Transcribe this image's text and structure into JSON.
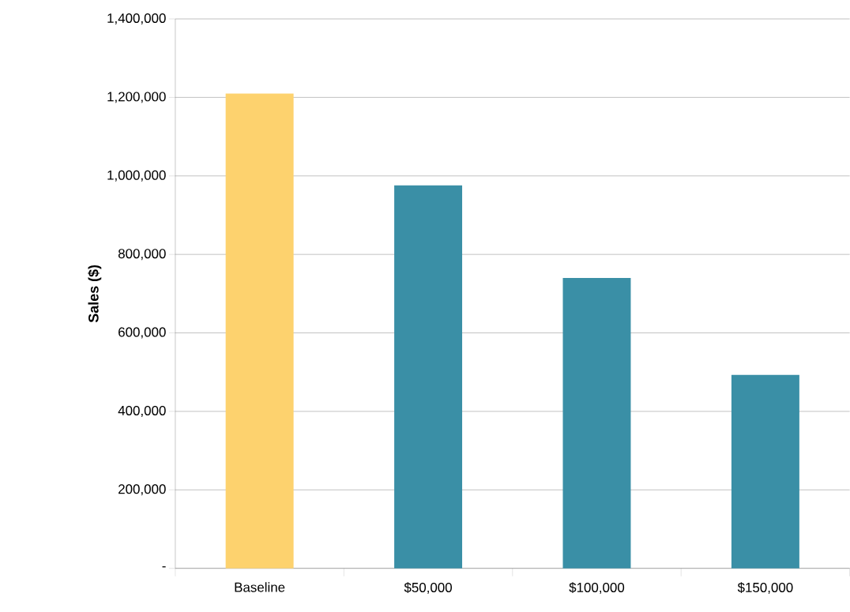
{
  "chart_data": {
    "type": "bar",
    "ylabel": "Sales ($)",
    "categories": [
      "Baseline",
      "$50,000",
      "$100,000",
      "$150,000"
    ],
    "values": [
      1210000,
      976000,
      740000,
      493000
    ],
    "colors": [
      "#fdd26e",
      "#3a8fa6",
      "#3a8fa6",
      "#3a8fa6"
    ],
    "ylim": [
      0,
      1400000
    ],
    "yticks": [
      {
        "value": 0,
        "label": "-"
      },
      {
        "value": 200000,
        "label": "200,000"
      },
      {
        "value": 400000,
        "label": "400,000"
      },
      {
        "value": 600000,
        "label": "600,000"
      },
      {
        "value": 800000,
        "label": "800,000"
      },
      {
        "value": 1000000,
        "label": "1,000,000"
      },
      {
        "value": 1200000,
        "label": "1,200,000"
      },
      {
        "value": 1400000,
        "label": "1,400,000"
      }
    ],
    "grid": "y"
  }
}
